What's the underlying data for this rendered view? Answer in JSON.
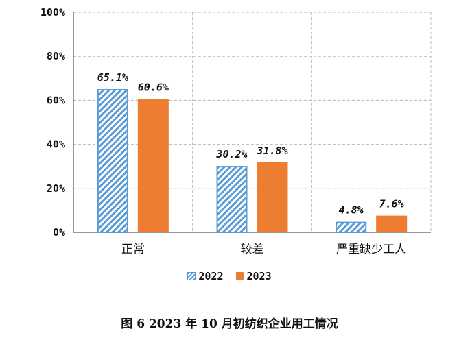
{
  "chart_data": {
    "type": "bar",
    "categories": [
      "正常",
      "较差",
      "严重缺少工人"
    ],
    "series": [
      {
        "name": "2022",
        "values": [
          65.1,
          30.2,
          4.8
        ],
        "labels": [
          "65.1%",
          "30.2%",
          "4.8%"
        ],
        "color": "#5b9bd5",
        "pattern": "diagonal-hatch"
      },
      {
        "name": "2023",
        "values": [
          60.6,
          31.8,
          7.6
        ],
        "labels": [
          "60.6%",
          "31.8%",
          "7.6%"
        ],
        "color": "#ed7d31",
        "pattern": "solid"
      }
    ],
    "ylim": [
      0,
      100
    ],
    "yticks": [
      "0%",
      "20%",
      "40%",
      "60%",
      "80%",
      "100%"
    ],
    "grid": "dashed",
    "legend_position": "bottom"
  },
  "caption": "图 6   2023 年 10 月初纺织企业用工情况"
}
